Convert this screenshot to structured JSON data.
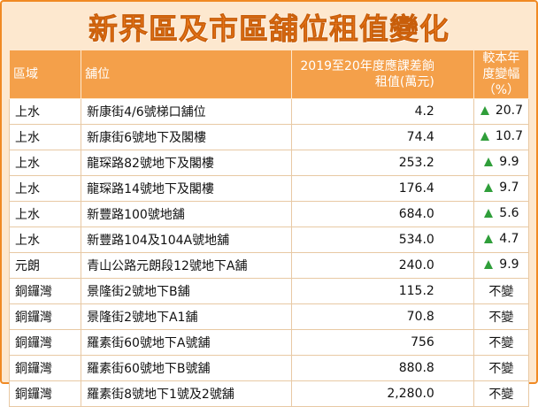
{
  "title": "新界區及市區舖位租值變化",
  "table": {
    "header": [
      "區域",
      "舖位",
      "2019至20年度應課差餉租值(萬元)",
      "較本年度變幅（%）"
    ],
    "rows": [
      [
        "上水",
        "新康街4/6號梯口舖位",
        "4.2",
        "20.7"
      ],
      [
        "上水",
        "新康街6號地下及閣樓",
        "74.4",
        "10.7"
      ],
      [
        "上水",
        "龍琛路82號地下及閣樓",
        "253.2",
        "9.9"
      ],
      [
        "上水",
        "龍琛路14號地下及閣樓",
        "176.4",
        "9.7"
      ],
      [
        "上水",
        "新豐路100號地舖",
        "684.0",
        "5.6"
      ],
      [
        "上水",
        "新豐路104及104A號地舖",
        "534.0",
        "4.7"
      ],
      [
        "元朗",
        "青山公路元朗段12號地下A舖",
        "240.0",
        "9.9"
      ],
      [
        "銅鑼灣",
        "景隆街2號地下B舖",
        "115.2",
        "不變"
      ],
      [
        "銅鑼灣",
        "景隆街2號地下A1舖",
        "70.8",
        "不變"
      ],
      [
        "銅鑼灣",
        "羅素街60號地下A號舖",
        "756",
        "不變"
      ],
      [
        "銅鑼灣",
        "羅素街60號地下B號舖",
        "880.8",
        "不變"
      ],
      [
        "銅鑼灣",
        "羅素街8號地下1號及2號舖",
        "2,280.0",
        "不變"
      ]
    ]
  }
}
